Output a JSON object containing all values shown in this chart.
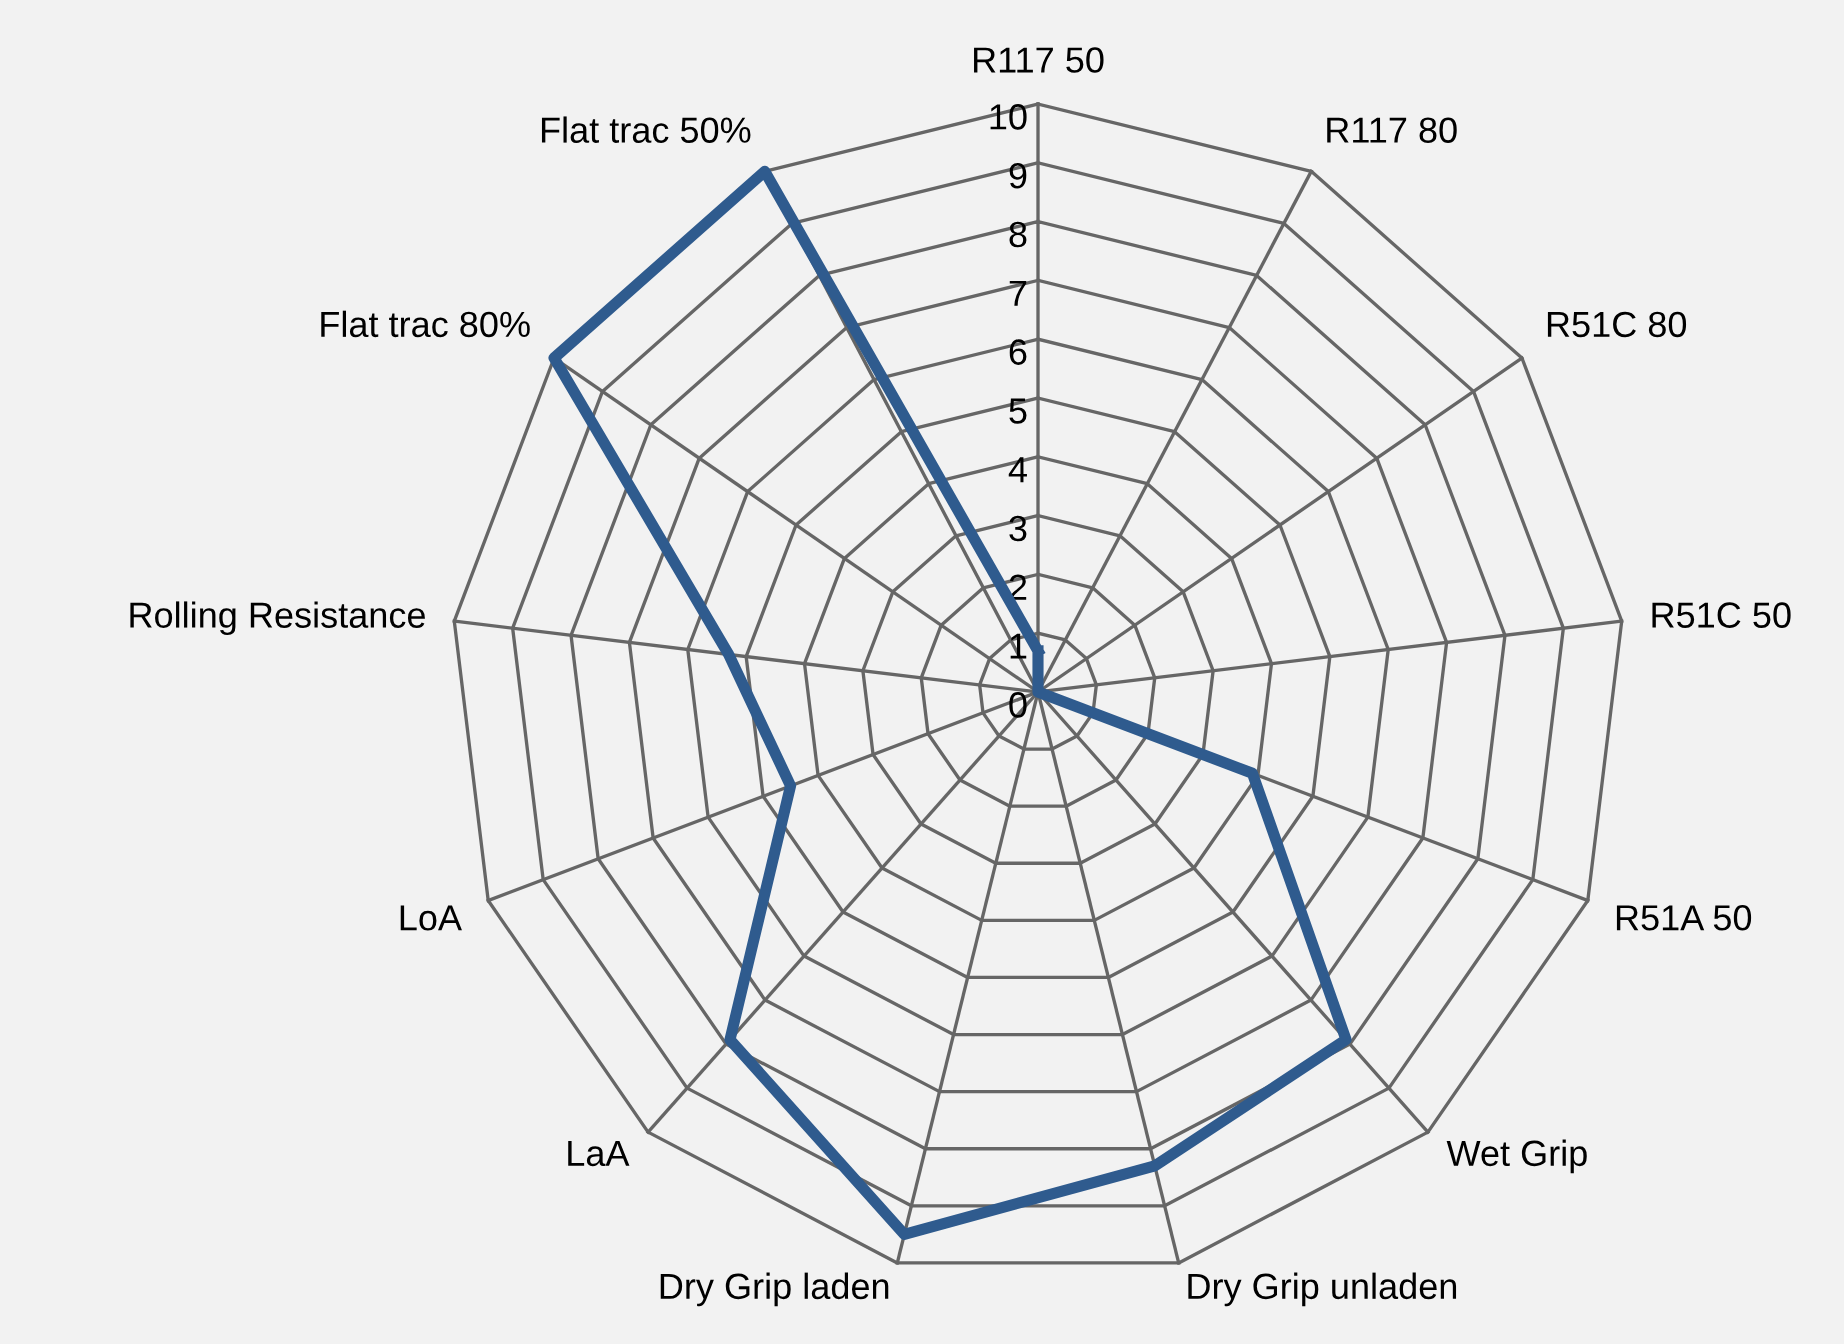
{
  "chart_data": {
    "type": "radar",
    "categories": [
      "R117 50",
      "R117 80",
      "R51C 80",
      "R51C 50",
      "R51A 50",
      "Wet Grip",
      "Dry Grip unladen",
      "Dry Grip laden",
      "LaA",
      "LoA",
      "Rolling Resistance",
      "Flat trac 80%",
      "Flat trac 50%"
    ],
    "series": [
      {
        "color": "#2f5b8e",
        "values": [
          0.7,
          0,
          0,
          0,
          3.9,
          7.9,
          8.3,
          9.5,
          7.9,
          4.5,
          5.3,
          10,
          10
        ]
      }
    ],
    "ylim": [
      0,
      10
    ],
    "yticks": [
      0,
      1,
      2,
      3,
      4,
      5,
      6,
      7,
      8,
      9,
      10
    ],
    "grid": true,
    "legend": false
  }
}
